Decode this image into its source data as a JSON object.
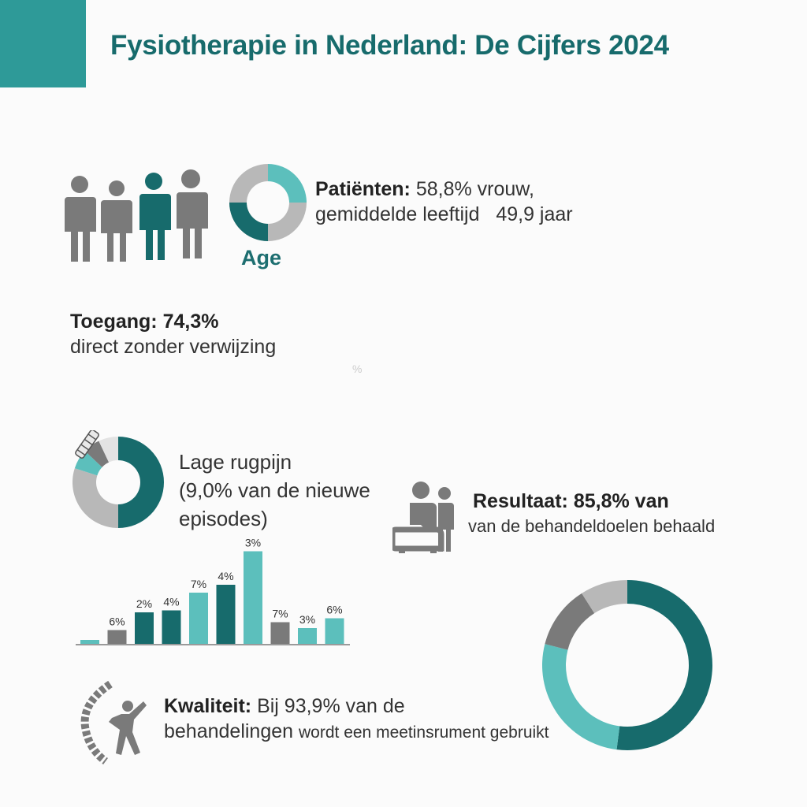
{
  "title": "Fysiotherapie in Nederland: De Cijfers 2024",
  "colors": {
    "teal_dark": "#176b6c",
    "teal": "#2e9a98",
    "teal_light": "#5cbfbc",
    "grey": "#7a7a7a",
    "grey_light": "#b8b8b8"
  },
  "patients": {
    "label": "Patiënten:",
    "text1": "58,8% vrouw,",
    "text2": "gemiddelde leeftijd",
    "age_value": "49,9 jaar",
    "icon_label": "Age",
    "icons": [
      "person-icon",
      "person-icon",
      "person-icon-highlight",
      "person-icon"
    ]
  },
  "toegang": {
    "label": "Toegang:",
    "value": "74,3%",
    "text": "direct zonder verwijzing"
  },
  "stray_mark": "%",
  "rugpijn": {
    "line1": "Lage rugpijn",
    "line2": "(9,0% van de nieuwe",
    "line3": "episodes)"
  },
  "resultaat": {
    "label": "Resultaat:",
    "value": "85,8% van",
    "text": "van de behandeldoelen behaald"
  },
  "kwaliteit": {
    "label": "Kwaliteit:",
    "text1": "Bij 93,9% van de",
    "text2": "behandelingen",
    "text3": "wordt een meetinsrument gebruikt"
  },
  "chart_data": [
    {
      "type": "pie",
      "variant": "donut",
      "values": [
        25,
        75
      ],
      "colors": [
        "#5cbfbc",
        "#b8b8b8"
      ],
      "accent_segment_color": "#176b6c",
      "label": "Age"
    },
    {
      "type": "pie",
      "variant": "donut",
      "values": [
        50,
        30,
        7,
        6,
        7
      ],
      "colors": [
        "#176b6c",
        "#b8b8b8",
        "#5cbfbc",
        "#7a7a7a",
        "#e3e3e3"
      ]
    },
    {
      "type": "bar",
      "values": [
        1,
        3.5,
        8,
        8.5,
        13,
        15,
        23.5,
        5.5,
        4,
        6.5
      ],
      "labels": [
        "",
        "6%",
        "2%",
        "4%",
        "7%",
        "4%",
        "3%",
        "7%",
        "3%",
        "6%"
      ],
      "colors": [
        "#5cbfbc",
        "#7a7a7a",
        "#176b6c",
        "#176b6c",
        "#5cbfbc",
        "#176b6c",
        "#5cbfbc",
        "#7a7a7a",
        "#5cbfbc",
        "#5cbfbc"
      ],
      "ylim": [
        0,
        25
      ]
    },
    {
      "type": "pie",
      "variant": "donut",
      "values": [
        52,
        27,
        12,
        9
      ],
      "colors": [
        "#176b6c",
        "#5cbfbc",
        "#7a7a7a",
        "#b8b8b8"
      ]
    }
  ]
}
